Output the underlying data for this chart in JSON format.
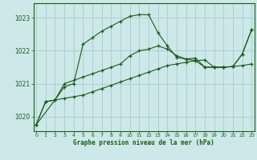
{
  "title": "Graphe pression niveau de la mer (hPa)",
  "bg_color": "#cce8e8",
  "grid_color": "#aacccc",
  "line_color": "#1a5c1a",
  "x_ticks": [
    0,
    1,
    2,
    3,
    4,
    5,
    6,
    7,
    8,
    9,
    10,
    11,
    12,
    13,
    14,
    15,
    16,
    17,
    18,
    19,
    20,
    21,
    22,
    23
  ],
  "y_ticks": [
    1020,
    1021,
    1022,
    1023
  ],
  "ylim": [
    1019.55,
    1023.45
  ],
  "xlim": [
    -0.3,
    23.3
  ],
  "series1_x": [
    0,
    1,
    2,
    3,
    4,
    5,
    6,
    7,
    8,
    9,
    10,
    11,
    12,
    13,
    14,
    15,
    16,
    17,
    18,
    19,
    20,
    21,
    22,
    23
  ],
  "series1_y": [
    1019.75,
    1020.45,
    1020.5,
    1020.55,
    1020.6,
    1020.65,
    1020.75,
    1020.85,
    1020.95,
    1021.05,
    1021.15,
    1021.25,
    1021.35,
    1021.45,
    1021.55,
    1021.6,
    1021.65,
    1021.7,
    1021.72,
    1021.5,
    1021.5,
    1021.52,
    1021.55,
    1021.6
  ],
  "series2_x": [
    0,
    1,
    2,
    3,
    4,
    5,
    6,
    7,
    8,
    9,
    10,
    11,
    12,
    13,
    14,
    15,
    16,
    17,
    18,
    19,
    20,
    21,
    22,
    23
  ],
  "series2_y": [
    1019.75,
    1020.45,
    1020.5,
    1021.0,
    1021.1,
    1021.2,
    1021.3,
    1021.4,
    1021.5,
    1021.6,
    1021.85,
    1022.0,
    1022.05,
    1022.15,
    1022.05,
    1021.85,
    1021.75,
    1021.7,
    1021.5,
    1021.5,
    1021.5,
    1021.52,
    1021.9,
    1022.65
  ],
  "series3_x": [
    0,
    2,
    3,
    4,
    5,
    6,
    7,
    8,
    9,
    10,
    11,
    12,
    13,
    14,
    15,
    16,
    17,
    18,
    19,
    20,
    21,
    22,
    23
  ],
  "series3_y": [
    1019.75,
    1020.5,
    1020.9,
    1021.0,
    1022.2,
    1022.4,
    1022.6,
    1022.75,
    1022.9,
    1023.05,
    1023.1,
    1023.1,
    1022.55,
    1022.15,
    1021.8,
    1021.75,
    1021.78,
    1021.5,
    1021.5,
    1021.5,
    1021.52,
    1021.9,
    1022.65
  ]
}
